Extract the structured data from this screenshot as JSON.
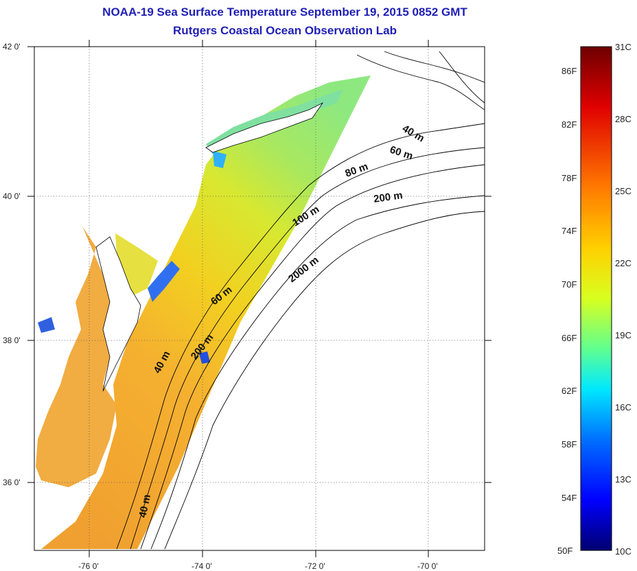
{
  "title": {
    "line1": "NOAA-19 Sea Surface Temperature September 19, 2015 0852 GMT",
    "line2": "Rutgers Coastal Ocean Observation Lab"
  },
  "map": {
    "lon_labels": [
      "-76 0'",
      "-74 0'",
      "-72 0'",
      "-70 0'"
    ],
    "lat_labels": [
      "42 0'",
      "40 0'",
      "38 0'",
      "36 0'"
    ],
    "lon_range": [
      -77,
      -69
    ],
    "lat_range": [
      35,
      42
    ],
    "grid": "dotted",
    "contour_labels": [
      "40 m",
      "60 m",
      "80 m",
      "200 m",
      "100 m",
      "2000 m",
      "60 m",
      "200 m",
      "40 m",
      "40 m"
    ]
  },
  "colorbar": {
    "fahrenheit_labels": [
      "86F",
      "82F",
      "78F",
      "74F",
      "70F",
      "66F",
      "62F",
      "58F",
      "54F",
      "50F"
    ],
    "celsius_labels": [
      "31C",
      "28C",
      "25C",
      "22C",
      "19C",
      "16C",
      "13C",
      "10C"
    ],
    "colors": [
      "#000080",
      "#0000ff",
      "#0080ff",
      "#00ffff",
      "#80ff80",
      "#ffff00",
      "#ff8000",
      "#ff0000",
      "#800000"
    ]
  }
}
